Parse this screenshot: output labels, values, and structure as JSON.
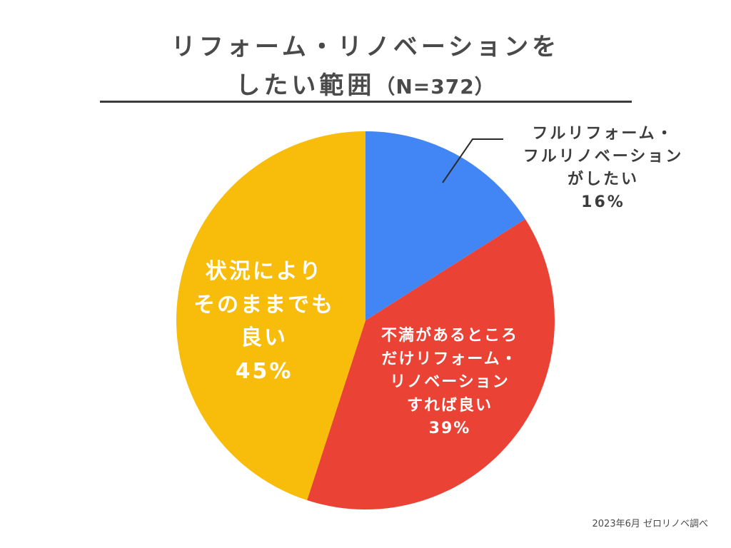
{
  "title": {
    "line1": "リフォーム・リノベーションを",
    "line2": "したい範囲",
    "n": "（N=372）"
  },
  "source": "2023年6月 ゼロリノベ調べ",
  "chart_data": {
    "type": "pie",
    "title": "リフォーム・リノベーションをしたい範囲（N=372）",
    "slices": [
      {
        "label_lines": [
          "フルリフォーム・",
          "フルリノベーション",
          "がしたい"
        ],
        "value": 16,
        "value_label": "16%",
        "color": "#4285f4"
      },
      {
        "label_lines": [
          "不満があるところ",
          "だけリフォーム・",
          "リノベーション",
          "すれば良い"
        ],
        "value": 39,
        "value_label": "39%",
        "color": "#ea4335"
      },
      {
        "label_lines": [
          "状況により",
          "そのままでも",
          "良い"
        ],
        "value": 45,
        "value_label": "45%",
        "color": "#f8bc0b"
      }
    ],
    "start": "12 o'clock",
    "direction": "clockwise",
    "legend": "none (labels on chart)"
  }
}
